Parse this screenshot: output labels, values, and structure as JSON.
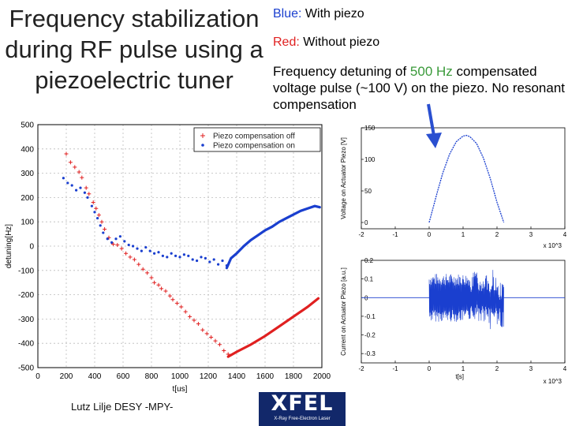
{
  "slide": {
    "title_lines": [
      "Frequency stabilization",
      "during RF pulse using a",
      "piezoelectric tuner"
    ],
    "note_blue_label": "Blue:",
    "note_blue_text": " With piezo",
    "note_red_label": "Red:",
    "note_red_text": "  Without piezo",
    "desc_pre": "Frequency detuning of ",
    "desc_value": "500 Hz",
    "desc_post": " compensated voltage pulse (~100 V) on the piezo. No resonant compensation",
    "footer": "Lutz Lilje   DESY -MPY-",
    "logo_main": "XFEL",
    "logo_sub": "X-Ray Free-Electron Laser",
    "colors": {
      "blue": "#1a3fcf",
      "red": "#e02020",
      "green": "#3a9a3a",
      "arrow": "#2a4fd0"
    }
  },
  "chart_data": [
    {
      "type": "scatter",
      "xlabel": "t[us]",
      "ylabel": "detuning[Hz]",
      "xlim": [
        0,
        2000
      ],
      "ylim": [
        -500,
        500
      ],
      "xticks": [
        0,
        200,
        400,
        600,
        800,
        1000,
        1200,
        1400,
        1600,
        1800,
        2000
      ],
      "yticks": [
        500,
        400,
        300,
        200,
        100,
        0,
        -100,
        -200,
        -300,
        -400,
        -500
      ],
      "grid": true,
      "legend_position": "top-right",
      "series": [
        {
          "name": "Piezo compensation off",
          "marker": "+",
          "color": "#e02020",
          "points": [
            [
              200,
              380
            ],
            [
              230,
              345
            ],
            [
              260,
              325
            ],
            [
              290,
              305
            ],
            [
              310,
              282
            ],
            [
              340,
              240
            ],
            [
              360,
              215
            ],
            [
              390,
              180
            ],
            [
              410,
              155
            ],
            [
              430,
              128
            ],
            [
              450,
              100
            ],
            [
              470,
              70
            ],
            [
              500,
              35
            ],
            [
              530,
              8
            ],
            [
              560,
              5
            ],
            [
              590,
              -10
            ],
            [
              620,
              -30
            ],
            [
              650,
              -45
            ],
            [
              680,
              -55
            ],
            [
              710,
              -75
            ],
            [
              740,
              -95
            ],
            [
              770,
              -110
            ],
            [
              800,
              -130
            ],
            [
              820,
              -150
            ],
            [
              850,
              -160
            ],
            [
              870,
              -175
            ],
            [
              900,
              -185
            ],
            [
              930,
              -205
            ],
            [
              950,
              -220
            ],
            [
              980,
              -235
            ],
            [
              1010,
              -250
            ],
            [
              1040,
              -270
            ],
            [
              1070,
              -290
            ],
            [
              1100,
              -305
            ],
            [
              1130,
              -320
            ],
            [
              1160,
              -345
            ],
            [
              1190,
              -360
            ],
            [
              1220,
              -375
            ],
            [
              1250,
              -390
            ],
            [
              1280,
              -405
            ],
            [
              1310,
              -430
            ],
            [
              1340,
              -445
            ]
          ],
          "lines": [
            [
              [
                1340,
                -455
              ],
              [
                1400,
                -435
              ],
              [
                1500,
                -405
              ],
              [
                1600,
                -370
              ],
              [
                1700,
                -330
              ],
              [
                1800,
                -290
              ],
              [
                1900,
                -250
              ],
              [
                1975,
                -215
              ]
            ]
          ]
        },
        {
          "name": "Piezo compensation on",
          "marker": "dot",
          "color": "#1a3fcf",
          "points": [
            [
              180,
              280
            ],
            [
              210,
              260
            ],
            [
              240,
              250
            ],
            [
              270,
              230
            ],
            [
              300,
              240
            ],
            [
              330,
              220
            ],
            [
              350,
              200
            ],
            [
              380,
              165
            ],
            [
              400,
              140
            ],
            [
              420,
              115
            ],
            [
              440,
              85
            ],
            [
              460,
              55
            ],
            [
              490,
              30
            ],
            [
              520,
              15
            ],
            [
              550,
              30
            ],
            [
              580,
              40
            ],
            [
              610,
              20
            ],
            [
              640,
              5
            ],
            [
              670,
              0
            ],
            [
              700,
              -10
            ],
            [
              730,
              -20
            ],
            [
              760,
              -5
            ],
            [
              790,
              -20
            ],
            [
              820,
              -30
            ],
            [
              850,
              -25
            ],
            [
              880,
              -40
            ],
            [
              910,
              -45
            ],
            [
              940,
              -30
            ],
            [
              970,
              -40
            ],
            [
              1000,
              -45
            ],
            [
              1030,
              -35
            ],
            [
              1060,
              -40
            ],
            [
              1090,
              -55
            ],
            [
              1120,
              -60
            ],
            [
              1150,
              -45
            ],
            [
              1180,
              -50
            ],
            [
              1210,
              -65
            ],
            [
              1240,
              -55
            ],
            [
              1270,
              -75
            ],
            [
              1300,
              -60
            ],
            [
              1330,
              -80
            ]
          ],
          "lines": [
            [
              [
                1330,
                -90
              ],
              [
                1360,
                -50
              ],
              [
                1400,
                -30
              ],
              [
                1450,
                0
              ],
              [
                1500,
                25
              ],
              [
                1550,
                45
              ],
              [
                1600,
                65
              ],
              [
                1650,
                80
              ],
              [
                1700,
                100
              ],
              [
                1750,
                115
              ],
              [
                1800,
                130
              ],
              [
                1850,
                145
              ],
              [
                1900,
                155
              ],
              [
                1950,
                165
              ],
              [
                1985,
                160
              ]
            ]
          ]
        }
      ]
    },
    {
      "type": "line",
      "ylabel": "Voltage on Actuator Piezo [V]",
      "xlim": [
        -2,
        4
      ],
      "ylim": [
        -10,
        150
      ],
      "xticks": [
        -2,
        -1,
        0,
        1,
        2,
        3,
        4
      ],
      "yticks": [
        150,
        100,
        50,
        0
      ],
      "x_exponent": "x 10^3",
      "color": "#1a3fcf",
      "series": [
        {
          "name": "",
          "x": [
            0,
            0.1,
            0.25,
            0.4,
            0.6,
            0.8,
            1.0,
            1.1,
            1.2,
            1.4,
            1.6,
            1.8,
            2.0,
            2.2
          ],
          "y": [
            0,
            20,
            50,
            78,
            108,
            128,
            137,
            138,
            136,
            125,
            102,
            70,
            32,
            0
          ]
        }
      ]
    },
    {
      "type": "line",
      "ylabel": "Current on Actuator Piezo [a.u.]",
      "xlim": [
        -2,
        4
      ],
      "ylim": [
        -0.35,
        0.2
      ],
      "xticks": [
        -2,
        -1,
        0,
        1,
        2,
        3,
        4
      ],
      "yticks": [
        0.2,
        0.1,
        0,
        -0.1,
        -0.2,
        -0.3
      ],
      "xlabel": "t[s]",
      "x_exponent": "x 10^3",
      "color": "#1a3fcf",
      "series": [
        {
          "name": "",
          "x": [
            -2,
            0,
            2.2,
            4
          ],
          "y": [
            0,
            0,
            0,
            0
          ]
        }
      ]
    }
  ]
}
